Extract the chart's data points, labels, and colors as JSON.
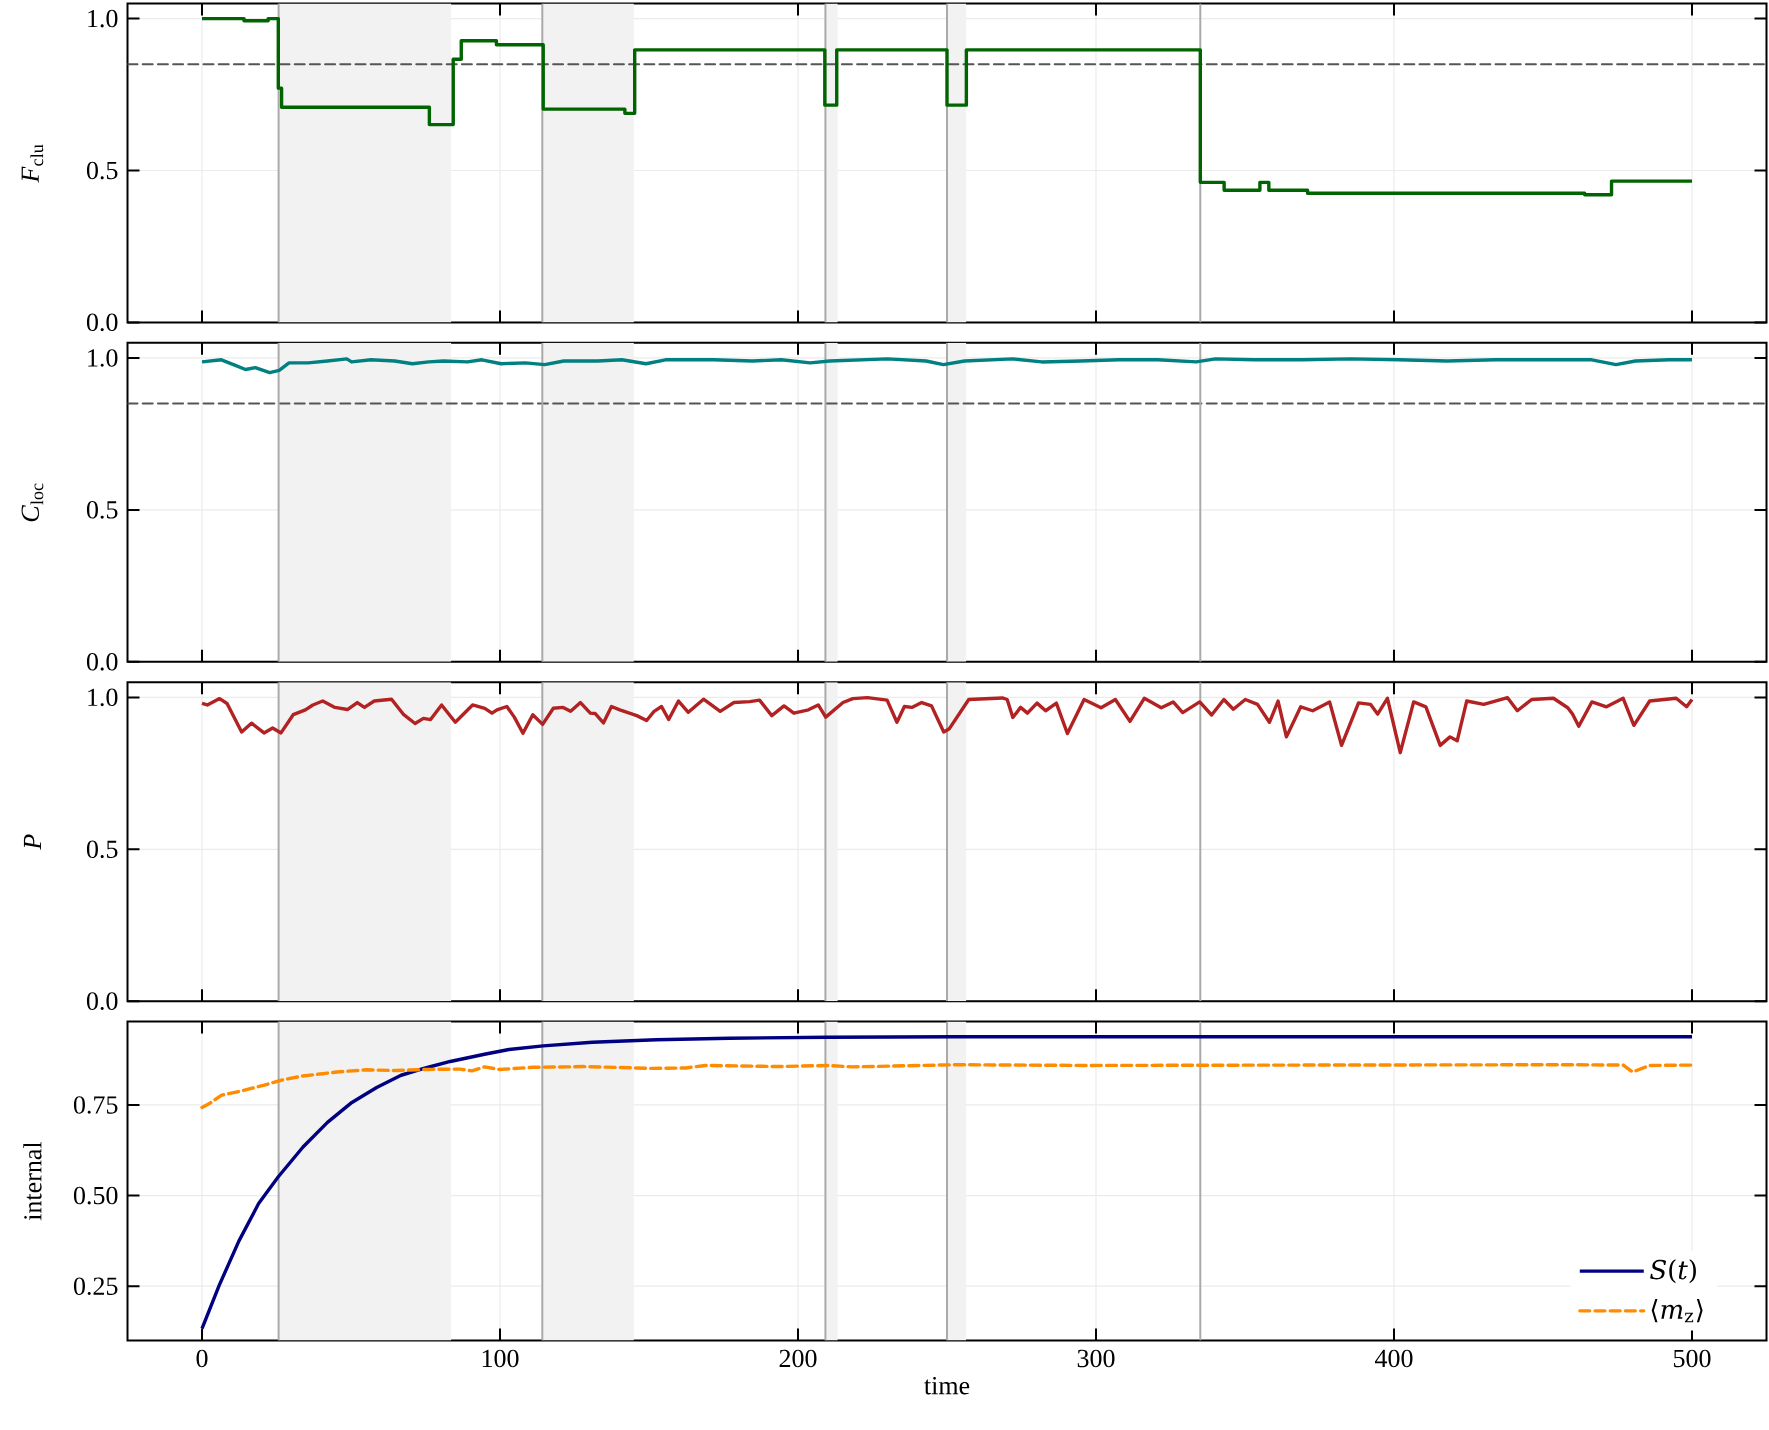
{
  "chart_data": [
    {
      "type": "step",
      "ylabel": "*F*$_{clu}$",
      "xlim": [
        -25,
        525
      ],
      "ylim": [
        0,
        1.05
      ],
      "xticks": [
        0,
        100,
        200,
        300,
        400,
        500
      ],
      "yticks": [
        {
          "value": 0,
          "label": "0.0"
        },
        0.5,
        {
          "value": 1,
          "label": "1.0"
        }
      ],
      "tick_labels": "y",
      "grid": true,
      "x": [
        0,
        14.1,
        22.2,
        25.6,
        26.7,
        76.3,
        84.3,
        87,
        98.8,
        114.5,
        141.9,
        145.2,
        209,
        213,
        250,
        256.5,
        335,
        343,
        355,
        358,
        371,
        464,
        473,
        500
      ],
      "series": [
        {
          "color": "#006400",
          "values": [
            1.0,
            0.993,
            1.0,
            0.771,
            0.708,
            0.651,
            0.866,
            0.927,
            0.914,
            0.702,
            0.688,
            0.897,
            0.715,
            0.897,
            0.715,
            0.897,
            0.461,
            0.435,
            0.461,
            0.435,
            0.425,
            0.42,
            0.465,
            0.465
          ]
        }
      ],
      "bands": [
        {
          "axis": "x",
          "from": 25.7,
          "to": 83.6,
          "color": "#f2f2f2"
        },
        {
          "axis": "x",
          "from": 114.2,
          "to": 144.9,
          "color": "#f2f2f2"
        },
        {
          "axis": "x",
          "from": 209.2,
          "to": 213.3,
          "color": "#f2f2f2"
        },
        {
          "axis": "x",
          "from": 250,
          "to": 256.4,
          "color": "#f2f2f2"
        }
      ],
      "ref_lines": [
        {
          "axis": "y",
          "value": 0.85,
          "color": "#555555",
          "line_style": "dashed"
        },
        {
          "axis": "x",
          "value": 25.7,
          "color": "#aaaaaa",
          "line_style": "solid"
        },
        {
          "axis": "x",
          "value": 114.2,
          "color": "#aaaaaa",
          "line_style": "solid"
        },
        {
          "axis": "x",
          "value": 209.2,
          "color": "#aaaaaa",
          "line_style": "solid"
        },
        {
          "axis": "x",
          "value": 250,
          "color": "#aaaaaa",
          "line_style": "solid"
        },
        {
          "axis": "x",
          "value": 335,
          "color": "#aaaaaa",
          "line_style": "solid"
        }
      ]
    },
    {
      "type": "line",
      "ylabel": "*C*$_{loc}$",
      "xlim": [
        -25,
        525
      ],
      "ylim": [
        0,
        1.05
      ],
      "xticks": [
        0,
        100,
        200,
        300,
        400,
        500
      ],
      "yticks": [
        {
          "value": 0,
          "label": "0.0"
        },
        0.5,
        {
          "value": 1,
          "label": "1.0"
        }
      ],
      "tick_labels": "y",
      "grid": true,
      "x": [
        0,
        6.5,
        11.4,
        14.6,
        17.9,
        22.7,
        25.9,
        29.2,
        35.6,
        42.1,
        48.6,
        50.2,
        56.7,
        64.7,
        70.6,
        76.1,
        81,
        89.1,
        93.9,
        100.4,
        108.5,
        115,
        121.4,
        132.8,
        140.9,
        149,
        155.5,
        171.7,
        184.6,
        194.4,
        204.1,
        210.6,
        230,
        243,
        248.8,
        255.9,
        272.1,
        281.8,
        294.8,
        307.7,
        320.7,
        333.6,
        340.1,
        353,
        369.2,
        385.4,
        401.6,
        417.8,
        434,
        450.2,
        466.4,
        474.5,
        481,
        492.3,
        500
      ],
      "series": [
        {
          "color": "#008080",
          "values": [
            0.987,
            0.994,
            0.975,
            0.962,
            0.968,
            0.952,
            0.959,
            0.984,
            0.984,
            0.99,
            0.997,
            0.987,
            0.994,
            0.99,
            0.981,
            0.987,
            0.99,
            0.987,
            0.994,
            0.981,
            0.984,
            0.978,
            0.99,
            0.99,
            0.994,
            0.981,
            0.994,
            0.994,
            0.99,
            0.994,
            0.984,
            0.99,
            0.997,
            0.99,
            0.978,
            0.99,
            0.997,
            0.987,
            0.99,
            0.994,
            0.994,
            0.987,
            0.997,
            0.994,
            0.994,
            0.997,
            0.994,
            0.99,
            0.994,
            0.994,
            0.994,
            0.978,
            0.99,
            0.994,
            0.994
          ]
        }
      ],
      "bands": [
        {
          "axis": "x",
          "from": 25.7,
          "to": 83.6,
          "color": "#f2f2f2"
        },
        {
          "axis": "x",
          "from": 114.2,
          "to": 144.9,
          "color": "#f2f2f2"
        },
        {
          "axis": "x",
          "from": 209.2,
          "to": 213.3,
          "color": "#f2f2f2"
        },
        {
          "axis": "x",
          "from": 250,
          "to": 256.4,
          "color": "#f2f2f2"
        }
      ],
      "ref_lines": [
        {
          "axis": "y",
          "value": 0.85,
          "color": "#555555",
          "line_style": "dashed"
        },
        {
          "axis": "x",
          "value": 25.7,
          "color": "#aaaaaa",
          "line_style": "solid"
        },
        {
          "axis": "x",
          "value": 114.2,
          "color": "#aaaaaa",
          "line_style": "solid"
        },
        {
          "axis": "x",
          "value": 209.2,
          "color": "#aaaaaa",
          "line_style": "solid"
        },
        {
          "axis": "x",
          "value": 250,
          "color": "#aaaaaa",
          "line_style": "solid"
        },
        {
          "axis": "x",
          "value": 335,
          "color": "#aaaaaa",
          "line_style": "solid"
        }
      ]
    },
    {
      "type": "line",
      "ylabel": "*P*",
      "xlim": [
        -25,
        525
      ],
      "ylim": [
        0,
        1.05
      ],
      "xticks": [
        0,
        100,
        200,
        300,
        400,
        500
      ],
      "yticks": [
        {
          "value": 0,
          "label": "0.0"
        },
        0.5,
        {
          "value": 1,
          "label": "1.0"
        }
      ],
      "tick_labels": "y",
      "grid": true,
      "x": [
        0,
        1.8,
        5.9,
        8.4,
        13.3,
        16.6,
        20.8,
        23.7,
        26.5,
        30.6,
        34.7,
        37.2,
        40.5,
        44.6,
        48.8,
        52.1,
        54.5,
        57.8,
        63.6,
        67.7,
        71.5,
        74.3,
        76.7,
        80.4,
        85,
        90.8,
        94.9,
        97.3,
        99,
        102.3,
        104.8,
        107.7,
        111,
        114.3,
        117.9,
        121.2,
        123.7,
        127,
        130.3,
        131.9,
        134.7,
        137.4,
        140.2,
        145.9,
        149.2,
        151.7,
        154.2,
        156.6,
        159.9,
        163.2,
        168.3,
        173.9,
        178.5,
        183.8,
        187.1,
        191.2,
        195.3,
        198.6,
        203.5,
        206.8,
        209.3,
        215.1,
        218.4,
        223.3,
        229.9,
        233.2,
        235.7,
        238.2,
        241.5,
        244.8,
        248.9,
        250.8,
        257.3,
        268.6,
        270.2,
        272.1,
        274.7,
        277,
        280.2,
        283.1,
        286.7,
        290.4,
        296,
        301.7,
        306.5,
        311.4,
        316.2,
        321.9,
        325.9,
        329.1,
        334.8,
        338.8,
        342.9,
        346.1,
        350.1,
        354.2,
        358.2,
        361.1,
        363.9,
        368.7,
        372.7,
        378.4,
        382.4,
        388.1,
        392.1,
        394.5,
        397.8,
        402.1,
        406.6,
        410.7,
        415.5,
        418.8,
        421.2,
        424.4,
        430.1,
        438.1,
        441.4,
        446.2,
        453.5,
        458.3,
        459.9,
        462,
        466.4,
        471.3,
        476.9,
        480.5,
        485.8,
        494.7,
        498.2,
        500
      ],
      "series": [
        {
          "color": "#b22222",
          "values": [
            0.98,
            0.975,
            0.996,
            0.98,
            0.886,
            0.915,
            0.883,
            0.899,
            0.883,
            0.943,
            0.959,
            0.975,
            0.988,
            0.967,
            0.96,
            0.983,
            0.967,
            0.988,
            0.994,
            0.943,
            0.914,
            0.931,
            0.927,
            0.975,
            0.918,
            0.975,
            0.964,
            0.948,
            0.959,
            0.97,
            0.935,
            0.882,
            0.943,
            0.911,
            0.964,
            0.967,
            0.954,
            0.983,
            0.948,
            0.947,
            0.916,
            0.97,
            0.959,
            0.94,
            0.924,
            0.954,
            0.97,
            0.927,
            0.988,
            0.951,
            0.994,
            0.954,
            0.983,
            0.986,
            0.991,
            0.94,
            0.972,
            0.948,
            0.959,
            0.975,
            0.935,
            0.983,
            0.996,
            0.999,
            0.991,
            0.918,
            0.97,
            0.967,
            0.983,
            0.972,
            0.886,
            0.897,
            0.993,
            0.998,
            0.993,
            0.934,
            0.967,
            0.948,
            0.981,
            0.956,
            0.981,
            0.881,
            0.993,
            0.966,
            0.993,
            0.921,
            0.997,
            0.966,
            0.985,
            0.95,
            0.985,
            0.942,
            0.993,
            0.961,
            0.993,
            0.977,
            0.918,
            0.988,
            0.87,
            0.969,
            0.956,
            0.985,
            0.842,
            0.982,
            0.977,
            0.945,
            0.997,
            0.818,
            0.985,
            0.969,
            0.842,
            0.87,
            0.857,
            0.988,
            0.977,
            0.999,
            0.956,
            0.993,
            0.997,
            0.966,
            0.945,
            0.905,
            0.985,
            0.969,
            0.997,
            0.908,
            0.988,
            0.997,
            0.969,
            0.993
          ]
        }
      ],
      "bands": [
        {
          "axis": "x",
          "from": 25.7,
          "to": 83.6,
          "color": "#f2f2f2"
        },
        {
          "axis": "x",
          "from": 114.2,
          "to": 144.9,
          "color": "#f2f2f2"
        },
        {
          "axis": "x",
          "from": 209.2,
          "to": 213.3,
          "color": "#f2f2f2"
        },
        {
          "axis": "x",
          "from": 250,
          "to": 256.4,
          "color": "#f2f2f2"
        }
      ],
      "ref_lines": [
        {
          "axis": "x",
          "value": 25.7,
          "color": "#aaaaaa",
          "line_style": "solid"
        },
        {
          "axis": "x",
          "value": 114.2,
          "color": "#aaaaaa",
          "line_style": "solid"
        },
        {
          "axis": "x",
          "value": 209.2,
          "color": "#aaaaaa",
          "line_style": "solid"
        },
        {
          "axis": "x",
          "value": 250,
          "color": "#aaaaaa",
          "line_style": "solid"
        },
        {
          "axis": "x",
          "value": 335,
          "color": "#aaaaaa",
          "line_style": "solid"
        }
      ]
    },
    {
      "type": "line",
      "xlabel": "time",
      "ylabel": "internal",
      "xlim": [
        -25,
        525
      ],
      "ylim": [
        0.1,
        0.98
      ],
      "xticks": [
        0,
        100,
        200,
        300,
        400,
        500
      ],
      "yticks": [
        0.25,
        {
          "value": 0.5,
          "label": "0.50"
        },
        0.75
      ],
      "grid": true,
      "legend": "bottom right",
      "series": [
        {
          "name": "*S*(*t*)",
          "color": "#000080",
          "line_style": "solid",
          "x": [
            0,
            5.8,
            12.4,
            19,
            25.6,
            33.9,
            42.1,
            50.3,
            58.6,
            66.8,
            75,
            83.3,
            94.8,
            103,
            114.5,
            131,
            152.4,
            177,
            210,
            252.8,
            500
          ],
          "values": [
            0.133,
            0.253,
            0.375,
            0.478,
            0.552,
            0.634,
            0.702,
            0.757,
            0.798,
            0.832,
            0.852,
            0.87,
            0.89,
            0.903,
            0.913,
            0.923,
            0.93,
            0.934,
            0.937,
            0.938,
            0.938
          ]
        },
        {
          "name": "⟨*m*$_{z}$⟩",
          "color": "#ff8c00",
          "line_style": "dashed",
          "x": [
            0,
            2.5,
            6.6,
            12.4,
            20.6,
            26.4,
            33.8,
            45.3,
            55.2,
            65.1,
            75,
            86.5,
            90.6,
            94.8,
            99.7,
            111.2,
            122.8,
            127.7,
            150.8,
            162.3,
            168.9,
            193.6,
            210,
            218.3,
            252.8,
            296,
            363.9,
            460.7,
            476.9,
            480.1,
            485.8,
            498.2,
            500
          ],
          "values": [
            0.743,
            0.754,
            0.777,
            0.787,
            0.804,
            0.818,
            0.83,
            0.841,
            0.847,
            0.845,
            0.848,
            0.849,
            0.844,
            0.855,
            0.848,
            0.854,
            0.855,
            0.856,
            0.851,
            0.852,
            0.859,
            0.856,
            0.859,
            0.855,
            0.861,
            0.859,
            0.86,
            0.861,
            0.86,
            0.841,
            0.859,
            0.86,
            0.86
          ]
        }
      ],
      "bands": [
        {
          "axis": "x",
          "from": 25.7,
          "to": 83.6,
          "color": "#f2f2f2"
        },
        {
          "axis": "x",
          "from": 114.2,
          "to": 144.9,
          "color": "#f2f2f2"
        },
        {
          "axis": "x",
          "from": 209.2,
          "to": 213.3,
          "color": "#f2f2f2"
        },
        {
          "axis": "x",
          "from": 250,
          "to": 256.4,
          "color": "#f2f2f2"
        }
      ],
      "ref_lines": [
        {
          "axis": "x",
          "value": 25.7,
          "color": "#aaaaaa",
          "line_style": "solid"
        },
        {
          "axis": "x",
          "value": 114.2,
          "color": "#aaaaaa",
          "line_style": "solid"
        },
        {
          "axis": "x",
          "value": 209.2,
          "color": "#aaaaaa",
          "line_style": "solid"
        },
        {
          "axis": "x",
          "value": 250,
          "color": "#aaaaaa",
          "line_style": "solid"
        },
        {
          "axis": "x",
          "value": 335,
          "color": "#aaaaaa",
          "line_style": "solid"
        }
      ]
    }
  ]
}
